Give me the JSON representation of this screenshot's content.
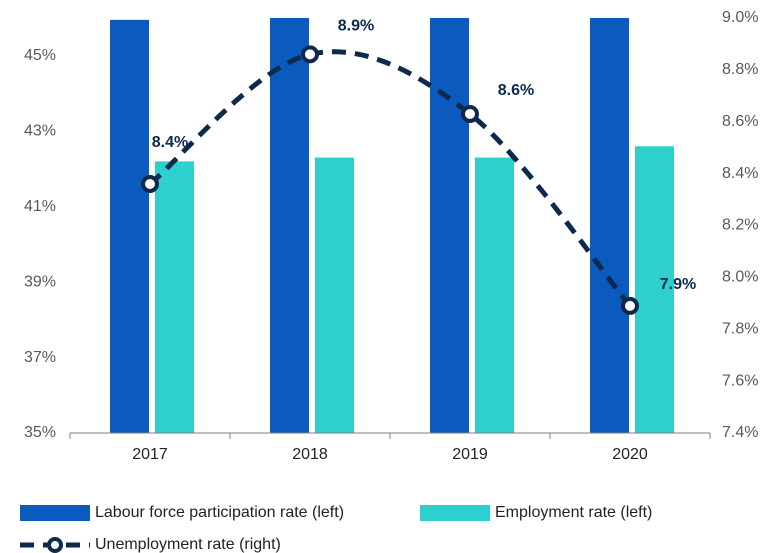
{
  "chart_data": {
    "type": "bar_line",
    "categories": [
      "2017",
      "2018",
      "2019",
      "2020"
    ],
    "series": [
      {
        "name": "Labour force participation rate (left)",
        "color": "#0a5bbd",
        "values": [
          45.95,
          46.3,
          46.4,
          46.2
        ]
      },
      {
        "name": "Employment rate (left)",
        "color": "#2ecfcf",
        "values": [
          42.2,
          42.3,
          42.3,
          42.6
        ]
      },
      {
        "name": "Unemployment rate (right)",
        "color": "#0d2a4e",
        "axis": "y2",
        "values": [
          8.36,
          8.86,
          8.63,
          7.89
        ],
        "value_labels": [
          "8.4%",
          "8.9%",
          "8.6%",
          "7.9%"
        ]
      }
    ],
    "ylim": [
      35,
      46
    ],
    "yticks": [
      {
        "value": 35,
        "label": "35%"
      },
      {
        "value": 37,
        "label": "37%"
      },
      {
        "value": 39,
        "label": "39%"
      },
      {
        "value": 41,
        "label": "41%"
      },
      {
        "value": 43,
        "label": "43%"
      },
      {
        "value": 45,
        "label": "45%"
      }
    ],
    "y2lim": [
      7.4,
      9.0
    ],
    "y2ticks": [
      {
        "value": 7.4,
        "label": "7.4%"
      },
      {
        "value": 7.6,
        "label": "7.6%"
      },
      {
        "value": 7.8,
        "label": "7.8%"
      },
      {
        "value": 8.0,
        "label": "8.0%"
      },
      {
        "value": 8.2,
        "label": "8.2%"
      },
      {
        "value": 8.4,
        "label": "8.4%"
      },
      {
        "value": 8.6,
        "label": "8.6%"
      },
      {
        "value": 8.8,
        "label": "8.8%"
      },
      {
        "value": 9.0,
        "label": "9.0%"
      }
    ],
    "legend": "bottom"
  }
}
